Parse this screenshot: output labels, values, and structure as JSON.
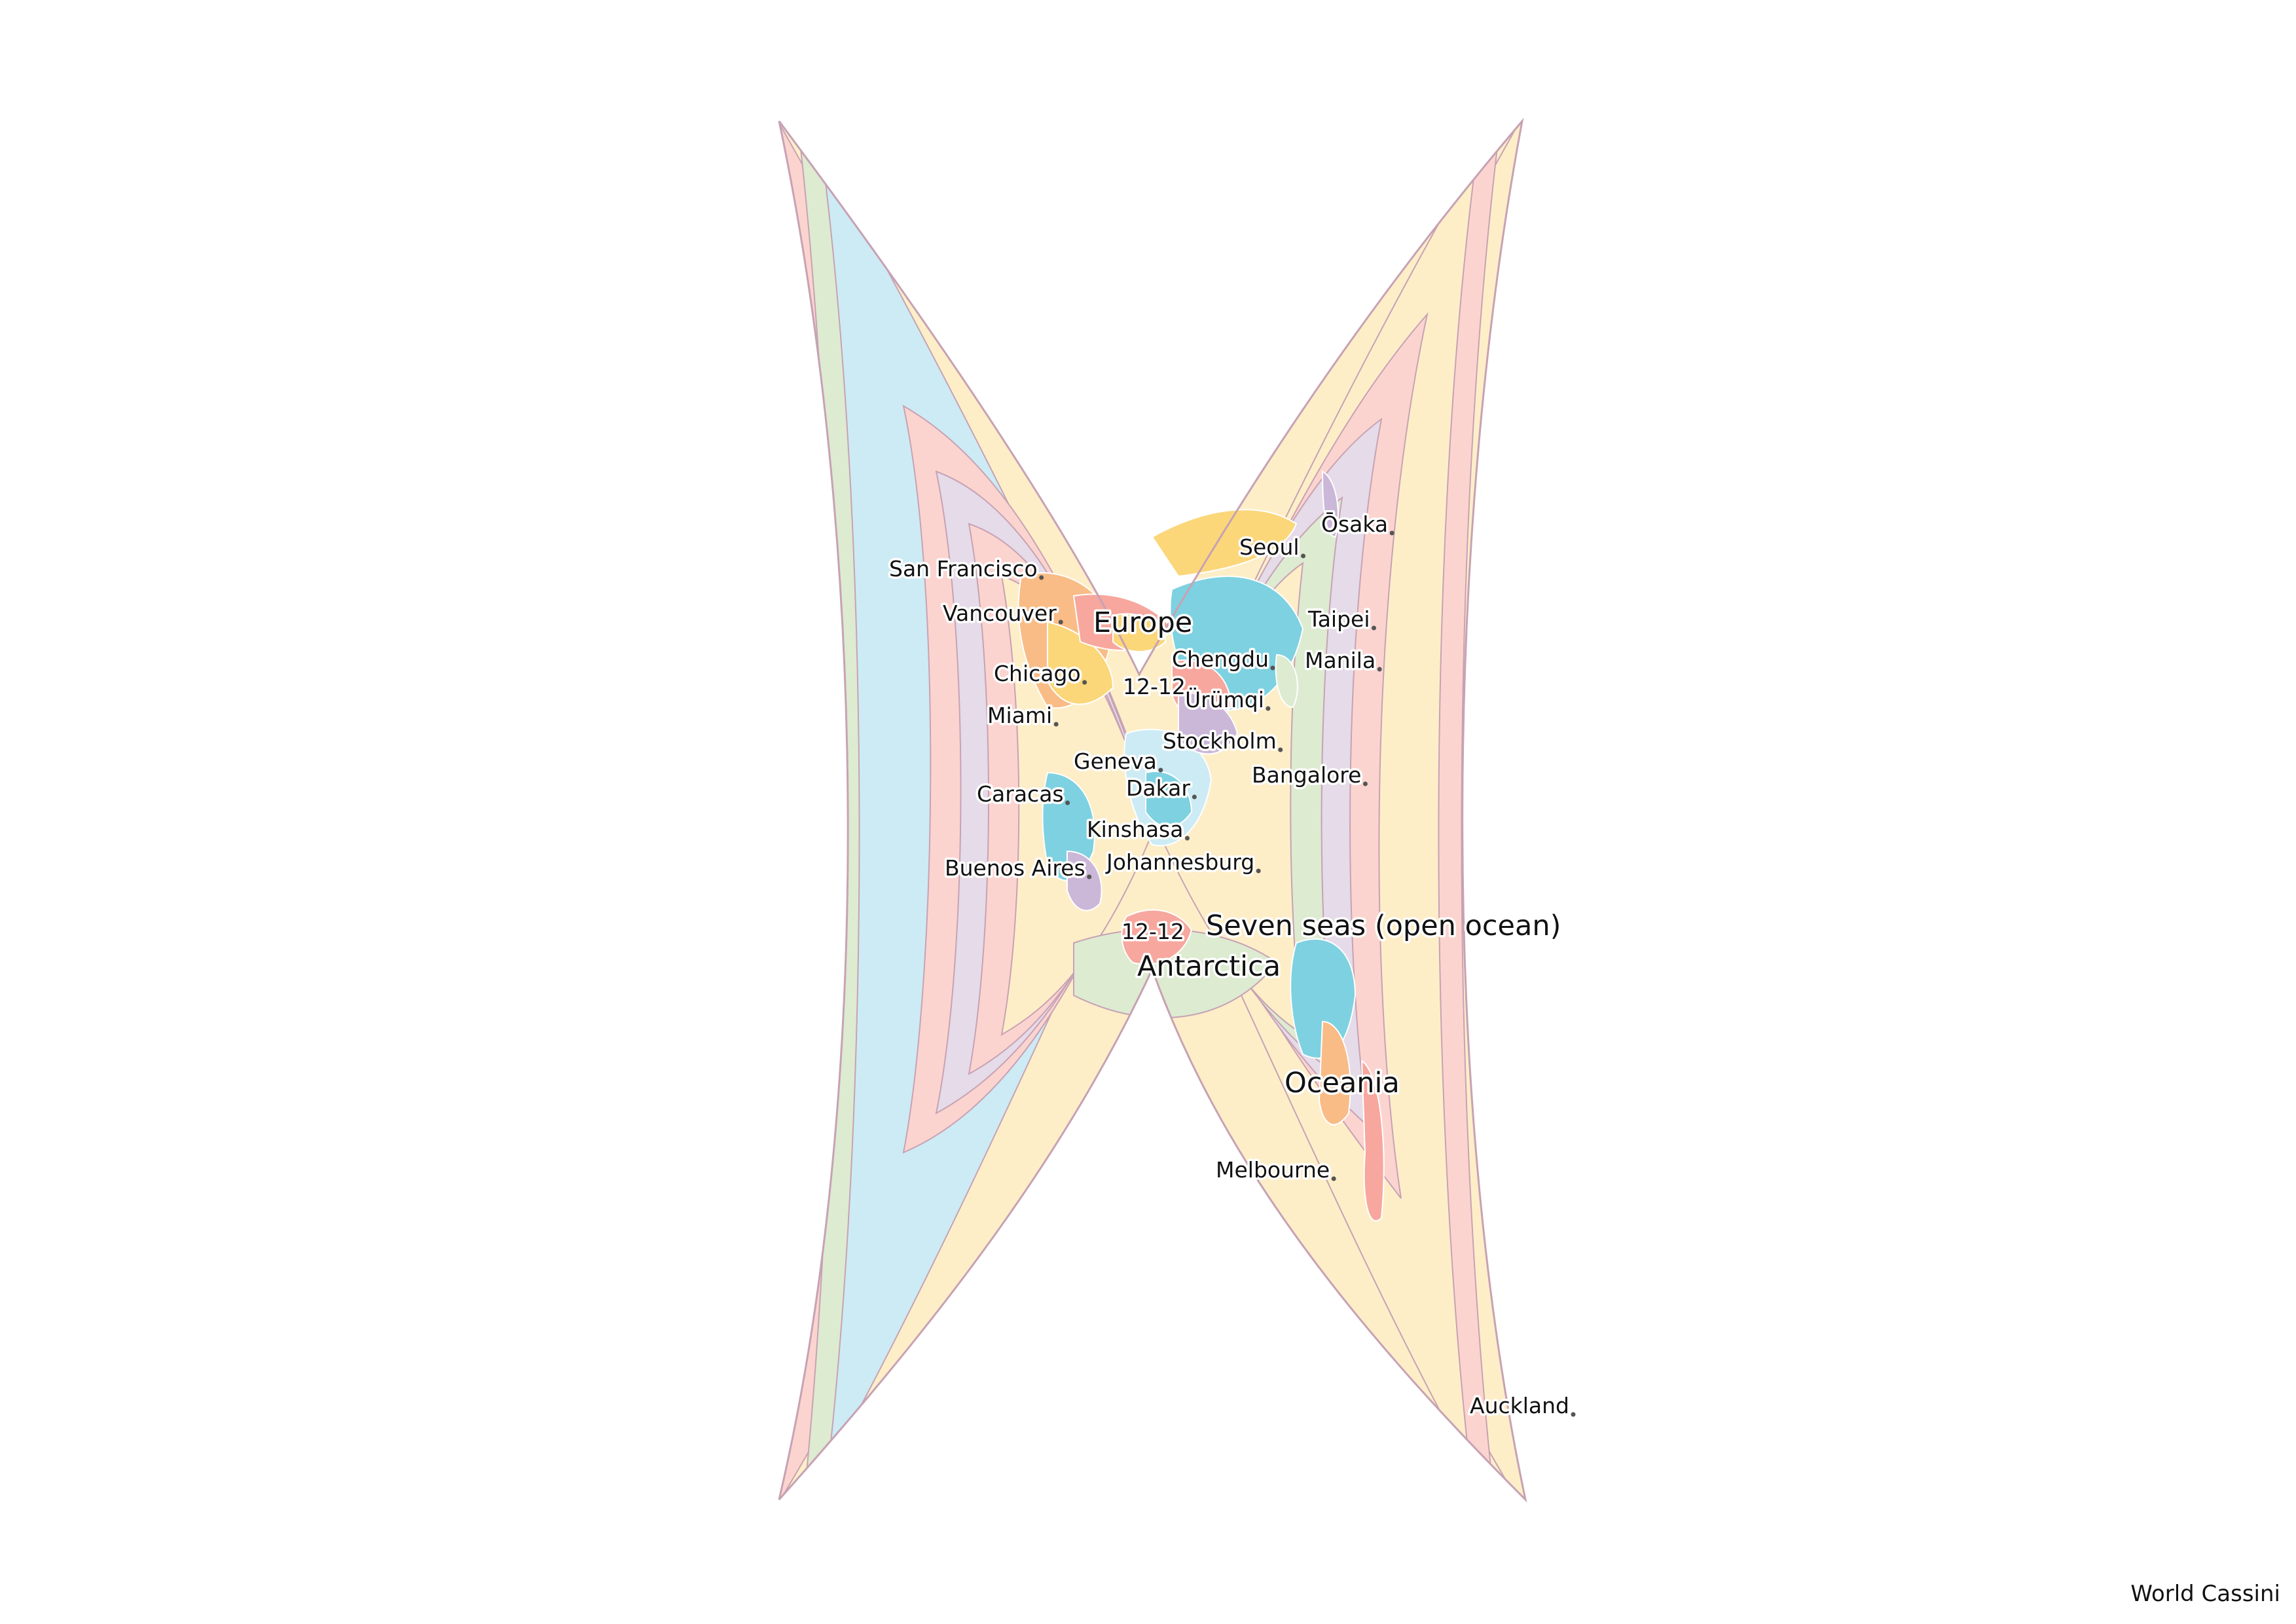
{
  "map": {
    "colors": {
      "pink": "#fcd4cf",
      "cream": "#fdeec8",
      "yellow": "#fbd77a",
      "green": "#ddebd1",
      "lightblue": "#cdebf4",
      "blue": "#7ed1e0",
      "lavender": "#e5dbe9",
      "purple": "#cbb7d8",
      "salmon": "#f7a79e",
      "orange": "#f9bc86",
      "outline": "#c7a2b4"
    },
    "region_labels": [
      "Europe",
      "Antarctica",
      "Oceania",
      "Seven seas (open ocean)"
    ],
    "city_labels": [
      "Ōsaka",
      "Seoul",
      "San Francisco",
      "Vancouver",
      "Taipei",
      "Chengdu",
      "Manila",
      "Chicago",
      "Ürümqi",
      "Miami",
      "Stockholm",
      "Geneva",
      "Bangalore",
      "Dakar",
      "Caracas",
      "Kinshasa",
      "Johannesburg",
      "Buenos Aires",
      "Melbourne",
      "Auckland"
    ],
    "zone_labels": [
      "12-12",
      "12-12"
    ]
  },
  "credit": "World Cassini"
}
